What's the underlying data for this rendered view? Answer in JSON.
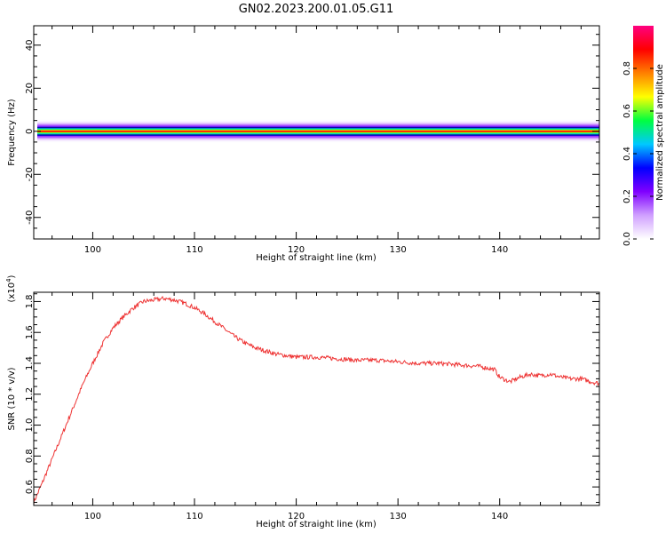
{
  "title": "GN02.2023.200.01.05.G11",
  "colors": {
    "snr_line": "#ee3333",
    "colorbar": [
      "#ffffff",
      "#d0a0ff",
      "#8000ff",
      "#0000ff",
      "#00c8ff",
      "#00ff40",
      "#ffff00",
      "#ff8000",
      "#ff0000",
      "#ff0080"
    ]
  },
  "chart_data": [
    {
      "type": "heatmap",
      "xlabel": "Height of straight line (km)",
      "ylabel": "Frequency (Hz)",
      "xlim": [
        94.2,
        149.8
      ],
      "ylim": [
        -50,
        49
      ],
      "xticks": [
        100,
        110,
        120,
        130,
        140
      ],
      "yticks": [
        -40,
        -20,
        0,
        20,
        40
      ],
      "grid": false,
      "colorbar": {
        "label": "Normalized spectral amplitude",
        "range": [
          0,
          1
        ],
        "ticks": [
          0.0,
          0.2,
          0.4,
          0.6,
          0.8
        ]
      },
      "description_values": {
        "band_center_hz": 0,
        "band_halfwidth_hz": 3,
        "peak_amplitude": 1.0
      }
    },
    {
      "type": "line",
      "xlabel": "Height of straight line (km)",
      "ylabel": "SNR (10 * v/v)",
      "y_multiplier": "(x10^4)",
      "xlim": [
        94.2,
        149.8
      ],
      "ylim": [
        0.48,
        1.86
      ],
      "xticks": [
        100,
        110,
        120,
        130,
        140
      ],
      "yticks": [
        0.6,
        0.8,
        1.0,
        1.2,
        1.4,
        1.6,
        1.8
      ],
      "grid": false,
      "series": [
        {
          "x": [
            94.2,
            95,
            96,
            97,
            98,
            99,
            100,
            101,
            102,
            103,
            104,
            105,
            106,
            107,
            108,
            109,
            110,
            111,
            112,
            113,
            114,
            115,
            116,
            117,
            118,
            119,
            120,
            122,
            124,
            126,
            128,
            130,
            132,
            134,
            136,
            138,
            139.5,
            140,
            141,
            142,
            143,
            144,
            145,
            146,
            147,
            148,
            149,
            149.8
          ],
          "values": [
            0.5,
            0.62,
            0.78,
            0.94,
            1.1,
            1.26,
            1.4,
            1.53,
            1.63,
            1.7,
            1.76,
            1.8,
            1.81,
            1.82,
            1.81,
            1.79,
            1.76,
            1.72,
            1.67,
            1.62,
            1.57,
            1.53,
            1.5,
            1.48,
            1.46,
            1.45,
            1.44,
            1.44,
            1.43,
            1.42,
            1.42,
            1.41,
            1.4,
            1.4,
            1.39,
            1.38,
            1.36,
            1.31,
            1.28,
            1.31,
            1.33,
            1.32,
            1.33,
            1.31,
            1.3,
            1.3,
            1.28,
            1.27
          ]
        }
      ]
    }
  ]
}
